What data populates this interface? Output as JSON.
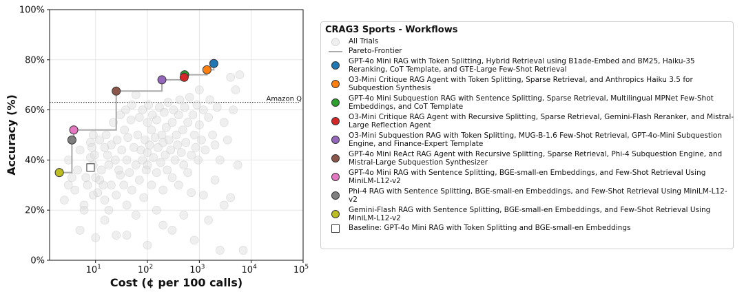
{
  "chart_data": {
    "type": "scatter",
    "title": "",
    "xlabel": "Cost (¢ per 100 calls)",
    "ylabel": "Accuracy (%)",
    "xscale": "log",
    "xlim": [
      1.3,
      100000
    ],
    "ylim": [
      0,
      100
    ],
    "x_ticks": [
      10,
      100,
      1000,
      10000,
      100000
    ],
    "x_tick_labels": [
      {
        "base": "10",
        "exp": "1"
      },
      {
        "base": "10",
        "exp": "2"
      },
      {
        "base": "10",
        "exp": "3"
      },
      {
        "base": "10",
        "exp": "4"
      },
      {
        "base": "10",
        "exp": "5"
      }
    ],
    "y_ticks": [
      0,
      20,
      40,
      60,
      80,
      100
    ],
    "y_tick_labels": [
      "0%",
      "20%",
      "40%",
      "60%",
      "80%",
      "100%"
    ],
    "grid": true,
    "legend_title": "CRAG3 Sports - Workflows",
    "legend_position": "right",
    "all_trials_label": "All Trials",
    "pareto_label": "Pareto-Frontier",
    "reference_line": {
      "label": "Amazon Q",
      "y": 63
    },
    "pareto_path": [
      [
        2.0,
        35.0
      ],
      [
        3.5,
        35.0
      ],
      [
        3.5,
        48.0
      ],
      [
        3.8,
        48.0
      ],
      [
        3.8,
        52.0
      ],
      [
        25,
        52.0
      ],
      [
        25,
        67.5
      ],
      [
        190,
        67.5
      ],
      [
        190,
        72.0
      ],
      [
        520,
        72.0
      ],
      [
        520,
        74.0
      ],
      [
        1400,
        74.0
      ],
      [
        1400,
        76.0
      ],
      [
        1900,
        76.0
      ],
      [
        1900,
        78.5
      ]
    ],
    "highlighted": [
      {
        "label": "GPT-4o Mini RAG with Token Splitting, Hybrid Retrieval using B1ade-Embed and BM25, Haiku-35 Reranking, CoT Template, and GTE-Large Few-Shot Retrieval",
        "x": 1900,
        "y": 78.5,
        "color": "#1f77b4",
        "marker": "circle"
      },
      {
        "label": "O3-Mini Critique RAG Agent with Token Splitting, Sparse Retrieval, and Anthropics Haiku 3.5 for Subquestion Synthesis",
        "x": 1400,
        "y": 76.0,
        "color": "#ff7f0e",
        "marker": "circle"
      },
      {
        "label": "GPT-4o Mini Subquestion RAG with Sentence Splitting, Sparse Retrieval, Multilingual MPNet Few-Shot Embeddings, and CoT Template",
        "x": 520,
        "y": 74.0,
        "color": "#2ca02c",
        "marker": "circle"
      },
      {
        "label": "O3-Mini Critique RAG Agent with Recursive Splitting, Sparse Retrieval, Gemini-Flash Reranker, and Mistral-Large Reflection Agent",
        "x": 510,
        "y": 73.0,
        "color": "#d62728",
        "marker": "circle"
      },
      {
        "label": "O3-Mini Subquestion RAG with Token Splitting, MUG-B-1.6 Few-Shot Retrieval, GPT-4o-Mini Subquestion Engine, and Finance-Expert Template",
        "x": 190,
        "y": 72.0,
        "color": "#9467bd",
        "marker": "circle"
      },
      {
        "label": "GPT-4o Mini ReAct RAG Agent with Recursive Splitting, Sparse Retrieval, Phi-4 Subquestion Engine, and Mistral-Large Subquestion Synthesizer",
        "x": 25,
        "y": 67.5,
        "color": "#8c564b",
        "marker": "circle"
      },
      {
        "label": "GPT-4o Mini RAG with Sentence Splitting, BGE-small-en Embeddings, and Few-Shot Retrieval Using MiniLM-L12-v2",
        "x": 3.8,
        "y": 52.0,
        "color": "#e377c2",
        "marker": "circle"
      },
      {
        "label": "Phi-4 RAG with Sentence Splitting, BGE-small-en Embeddings, and Few-Shot Retrieval Using MiniLM-L12-v2",
        "x": 3.5,
        "y": 48.0,
        "color": "#7f7f7f",
        "marker": "circle"
      },
      {
        "label": "Gemini-Flash RAG with Sentence Splitting, BGE-small-en Embeddings, and Few-Shot Retrieval Using MiniLM-L12-v2",
        "x": 2.0,
        "y": 35.0,
        "color": "#bcbd22",
        "marker": "circle"
      },
      {
        "label": "Baseline: GPT-4o Mini RAG with Token Splitting and BGE-small-en Embeddings",
        "x": 8.0,
        "y": 37.0,
        "color": "#ffffff",
        "marker": "square"
      }
    ],
    "all_trials": [
      [
        2.5,
        24
      ],
      [
        3,
        30
      ],
      [
        3,
        40
      ],
      [
        3.5,
        33
      ],
      [
        4,
        28
      ],
      [
        4.5,
        36
      ],
      [
        5,
        44
      ],
      [
        6,
        22
      ],
      [
        6,
        20
      ],
      [
        6.5,
        33
      ],
      [
        7,
        30
      ],
      [
        8,
        47
      ],
      [
        8,
        41
      ],
      [
        8.5,
        45
      ],
      [
        9,
        50
      ],
      [
        9,
        38
      ],
      [
        9.5,
        42
      ],
      [
        10,
        33
      ],
      [
        10,
        9
      ],
      [
        11,
        27
      ],
      [
        12,
        32
      ],
      [
        12,
        48
      ],
      [
        13,
        36
      ],
      [
        14,
        30
      ],
      [
        15,
        45
      ],
      [
        15,
        24
      ],
      [
        16,
        50
      ],
      [
        17,
        42
      ],
      [
        18,
        38
      ],
      [
        18,
        20
      ],
      [
        20,
        46
      ],
      [
        20,
        30
      ],
      [
        22,
        55
      ],
      [
        24,
        40
      ],
      [
        25,
        26
      ],
      [
        26,
        48
      ],
      [
        28,
        36
      ],
      [
        30,
        58
      ],
      [
        30,
        34
      ],
      [
        32,
        44
      ],
      [
        35,
        30
      ],
      [
        36,
        52
      ],
      [
        38,
        60
      ],
      [
        40,
        40
      ],
      [
        40,
        22
      ],
      [
        42,
        49
      ],
      [
        45,
        35
      ],
      [
        48,
        56
      ],
      [
        50,
        62
      ],
      [
        50,
        28
      ],
      [
        55,
        45
      ],
      [
        60,
        38
      ],
      [
        60,
        66
      ],
      [
        65,
        50
      ],
      [
        70,
        32
      ],
      [
        70,
        57
      ],
      [
        75,
        44
      ],
      [
        80,
        60
      ],
      [
        80,
        40
      ],
      [
        85,
        25
      ],
      [
        90,
        48
      ],
      [
        95,
        36
      ],
      [
        100,
        55
      ],
      [
        100,
        43
      ],
      [
        100,
        38
      ],
      [
        105,
        62
      ],
      [
        110,
        46
      ],
      [
        120,
        52
      ],
      [
        120,
        30
      ],
      [
        125,
        58
      ],
      [
        130,
        41
      ],
      [
        140,
        49
      ],
      [
        150,
        56
      ],
      [
        150,
        35
      ],
      [
        160,
        45
      ],
      [
        170,
        61
      ],
      [
        180,
        39
      ],
      [
        190,
        50
      ],
      [
        200,
        47
      ],
      [
        200,
        28
      ],
      [
        210,
        59
      ],
      [
        220,
        42
      ],
      [
        230,
        53
      ],
      [
        240,
        36
      ],
      [
        250,
        63
      ],
      [
        260,
        48
      ],
      [
        280,
        44
      ],
      [
        300,
        55
      ],
      [
        300,
        33
      ],
      [
        320,
        60
      ],
      [
        340,
        40
      ],
      [
        360,
        50
      ],
      [
        380,
        46
      ],
      [
        400,
        58
      ],
      [
        400,
        30
      ],
      [
        420,
        64
      ],
      [
        450,
        43
      ],
      [
        480,
        52
      ],
      [
        500,
        38
      ],
      [
        520,
        61
      ],
      [
        550,
        47
      ],
      [
        600,
        55
      ],
      [
        600,
        35
      ],
      [
        650,
        65
      ],
      [
        700,
        42
      ],
      [
        750,
        58
      ],
      [
        800,
        50
      ],
      [
        850,
        45
      ],
      [
        900,
        62
      ],
      [
        950,
        40
      ],
      [
        1000,
        54
      ],
      [
        1000,
        68
      ],
      [
        1100,
        48
      ],
      [
        1200,
        60
      ],
      [
        1300,
        44
      ],
      [
        1500,
        57
      ],
      [
        1600,
        64
      ],
      [
        1800,
        50
      ],
      [
        2000,
        46
      ],
      [
        2200,
        61
      ],
      [
        2500,
        40
      ],
      [
        3000,
        55
      ],
      [
        3000,
        22
      ],
      [
        3500,
        48
      ],
      [
        4000,
        73
      ],
      [
        4500,
        60
      ],
      [
        5000,
        68
      ],
      [
        5500,
        38
      ],
      [
        6000,
        74
      ],
      [
        7000,
        4
      ],
      [
        40,
        10
      ],
      [
        100,
        6
      ],
      [
        200,
        14
      ],
      [
        300,
        12
      ],
      [
        500,
        18
      ],
      [
        800,
        8
      ],
      [
        1500,
        16
      ],
      [
        2500,
        4
      ],
      [
        15,
        16
      ],
      [
        25,
        10
      ],
      [
        700,
        27
      ],
      [
        1200,
        26
      ],
      [
        60,
        18
      ],
      [
        150,
        20
      ],
      [
        2000,
        32
      ],
      [
        4000,
        25
      ],
      [
        9,
        26
      ],
      [
        5,
        12
      ]
    ]
  }
}
